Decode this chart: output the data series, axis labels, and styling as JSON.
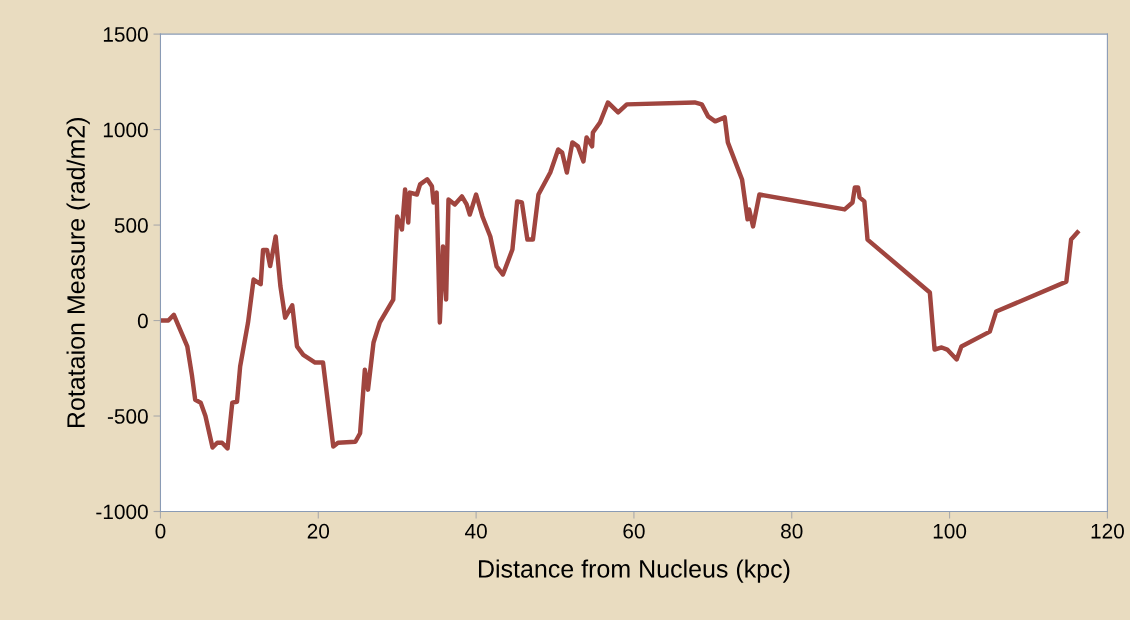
{
  "chart_data": {
    "type": "line",
    "xlabel": "Distance from Nucleus (kpc)",
    "ylabel": "Rotataion Measure (rad/m2)",
    "xlim": [
      0,
      120
    ],
    "xticks": [
      0,
      20,
      40,
      60,
      80,
      100,
      120
    ],
    "ylim": [
      -1000,
      1500
    ],
    "yticks": [
      -1000,
      -500,
      0,
      500,
      1000,
      1500
    ],
    "grid": false,
    "legend": false,
    "marker": "none",
    "line_style": "solid",
    "series": [
      {
        "color": "#a0453f",
        "x": [
          0.2,
          1,
          1.7,
          2.1,
          3.4,
          4,
          4.4,
          5.1,
          5.7,
          6.6,
          7.2,
          7.8,
          8.5,
          9.1,
          9.7,
          10.1,
          11.1,
          11.8,
          12.7,
          13.0,
          13.5,
          13.9,
          14.6,
          15.2,
          15.8,
          16.7,
          17.3,
          18.1,
          19.6,
          20.6,
          21.9,
          22.5,
          24.7,
          25.3,
          25.9,
          26.3,
          27,
          27.8,
          29.5,
          30,
          30.6,
          31,
          31.4,
          31.6,
          32.5,
          32.9,
          33.8,
          34.4,
          34.6,
          35,
          35.4,
          35.8,
          36.2,
          36.5,
          37.3,
          38.2,
          38.8,
          39.2,
          40,
          40.8,
          41.8,
          42.6,
          43.4,
          44.6,
          45.2,
          45.8,
          46.5,
          47.2,
          47.9,
          49.4,
          50.4,
          50.9,
          51.5,
          52.2,
          52.9,
          53.6,
          54,
          54.7,
          54.8,
          55.7,
          56.7,
          58,
          59.1,
          67.7,
          68.6,
          69.4,
          70.3,
          71.5,
          71.9,
          73.7,
          74.4,
          74.6,
          75.1,
          75.9,
          86.7,
          87.7,
          88,
          88.4,
          88.6,
          89.2,
          89.6,
          97.5,
          98.1,
          99,
          99.7,
          100.9,
          101.5,
          105.1,
          105.9,
          114.8,
          115.4,
          116.2
        ],
        "values": [
          0,
          0,
          30,
          -10,
          -135,
          -290,
          -415,
          -430,
          -500,
          -665,
          -640,
          -640,
          -670,
          -430,
          -425,
          -240,
          -10,
          215,
          190,
          370,
          370,
          285,
          440,
          180,
          15,
          80,
          -135,
          -180,
          -220,
          -220,
          -660,
          -640,
          -635,
          -590,
          -257,
          -362,
          -115,
          -10,
          110,
          545,
          477,
          686,
          513,
          670,
          660,
          713,
          740,
          703,
          618,
          670,
          -10,
          388,
          110,
          634,
          608,
          650,
          608,
          555,
          660,
          545,
          440,
          283,
          241,
          372,
          624,
          618,
          424,
          424,
          660,
          775,
          896,
          880,
          775,
          933,
          912,
          833,
          959,
          912,
          985,
          1037,
          1142,
          1090,
          1132,
          1142,
          1132,
          1069,
          1043,
          1064,
          933,
          739,
          530,
          582,
          493,
          660,
          582,
          618,
          697,
          697,
          645,
          624,
          424,
          147,
          -152,
          -141,
          -152,
          -204,
          -136,
          -58,
          47,
          204,
          424,
          461
        ]
      }
    ]
  }
}
